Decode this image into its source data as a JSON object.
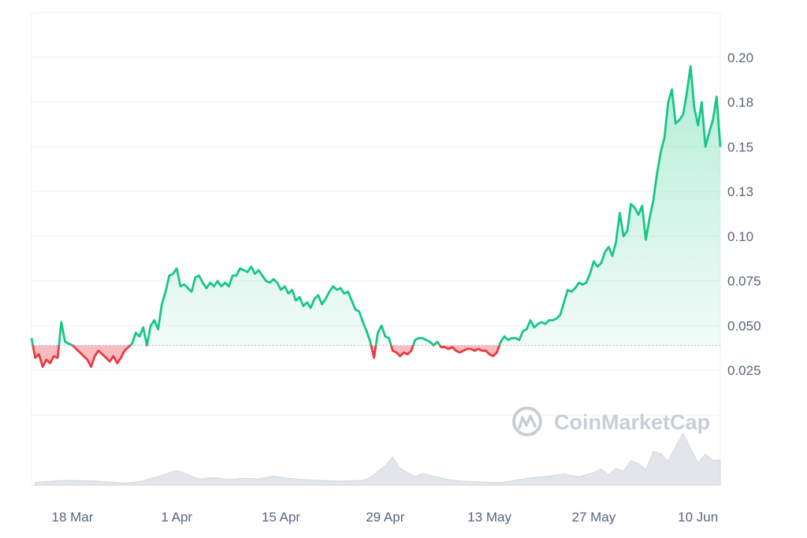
{
  "chart_data": {
    "type": "area",
    "baseline": 0.039,
    "colors": {
      "up": "#16c784",
      "down": "#ea3943",
      "volume": "#e2e6ea",
      "grid": "#eff2f5",
      "text": "#58667e",
      "watermark": "#c9ced6"
    },
    "y_ticks": [
      {
        "value": 0.025,
        "label": "0.025"
      },
      {
        "value": 0.05,
        "label": "0.050"
      },
      {
        "value": 0.075,
        "label": "0.075"
      },
      {
        "value": 0.1,
        "label": "0.10"
      },
      {
        "value": 0.125,
        "label": "0.13"
      },
      {
        "value": 0.15,
        "label": "0.15"
      },
      {
        "value": 0.175,
        "label": "0.18"
      },
      {
        "value": 0.2,
        "label": "0.20"
      }
    ],
    "ylim": [
      0.0,
      0.225
    ],
    "x_ticks": [
      {
        "value": 5,
        "label": "18 Mar"
      },
      {
        "value": 19,
        "label": "1 Apr"
      },
      {
        "value": 33,
        "label": "15 Apr"
      },
      {
        "value": 47,
        "label": "29 Apr"
      },
      {
        "value": 61,
        "label": "13 May"
      },
      {
        "value": 75,
        "label": "27 May"
      },
      {
        "value": 89,
        "label": "10 Jun"
      }
    ],
    "xlim": [
      -0.5,
      92
    ],
    "x_unit": "days from 13 Mar",
    "price_series": {
      "x": [
        -0.5,
        0,
        0.5,
        1,
        1.5,
        2,
        2.5,
        3,
        3.5,
        4,
        4.5,
        5,
        5.5,
        6,
        6.5,
        7,
        7.5,
        8,
        8.5,
        9,
        9.5,
        10,
        10.5,
        11,
        11.5,
        12,
        12.5,
        13,
        13.5,
        14,
        14.5,
        15,
        15.5,
        16,
        16.5,
        17,
        17.5,
        18,
        18.5,
        19,
        19.5,
        20,
        20.5,
        21,
        21.5,
        22,
        22.5,
        23,
        23.5,
        24,
        24.5,
        25,
        25.5,
        26,
        26.5,
        27,
        27.5,
        28,
        28.5,
        29,
        29.5,
        30,
        30.5,
        31,
        31.5,
        32,
        32.5,
        33,
        33.5,
        34,
        34.5,
        35,
        35.5,
        36,
        36.5,
        37,
        37.5,
        38,
        38.5,
        39,
        39.5,
        40,
        40.5,
        41,
        41.5,
        42,
        42.5,
        43,
        43.5,
        44,
        44.5,
        45,
        45.5,
        46,
        46.5,
        47,
        47.5,
        48,
        48.5,
        49,
        49.5,
        50,
        50.5,
        51,
        51.5,
        52,
        52.5,
        53,
        53.5,
        54,
        54.5,
        55,
        55.5,
        56,
        56.5,
        57,
        57.5,
        58,
        58.5,
        59,
        59.5,
        60,
        60.5,
        61,
        61.5,
        62,
        62.5,
        63,
        63.5,
        64,
        64.5,
        65,
        65.5,
        66,
        66.5,
        67,
        67.5,
        68,
        68.5,
        69,
        69.5,
        70,
        70.5,
        71,
        71.5,
        72,
        72.5,
        73,
        73.5,
        74,
        74.5,
        75,
        75.5,
        76,
        76.5,
        77,
        77.5,
        78,
        78.5,
        79,
        79.5,
        80,
        80.5,
        81,
        81.5,
        82,
        82.5,
        83,
        83.5,
        84,
        84.5,
        85,
        85.5,
        86,
        86.5,
        87,
        87.5,
        88,
        88.5,
        89,
        89.5,
        90,
        90.5,
        91,
        91.5,
        92
      ],
      "y": [
        0.043,
        0.032,
        0.034,
        0.027,
        0.031,
        0.029,
        0.033,
        0.032,
        0.052,
        0.041,
        0.04,
        0.039,
        0.037,
        0.035,
        0.033,
        0.031,
        0.027,
        0.033,
        0.036,
        0.034,
        0.032,
        0.03,
        0.033,
        0.029,
        0.032,
        0.036,
        0.038,
        0.04,
        0.046,
        0.044,
        0.049,
        0.039,
        0.05,
        0.053,
        0.048,
        0.062,
        0.069,
        0.078,
        0.079,
        0.082,
        0.072,
        0.073,
        0.071,
        0.069,
        0.077,
        0.078,
        0.074,
        0.071,
        0.074,
        0.072,
        0.075,
        0.072,
        0.074,
        0.072,
        0.078,
        0.078,
        0.082,
        0.081,
        0.08,
        0.083,
        0.079,
        0.081,
        0.078,
        0.075,
        0.074,
        0.076,
        0.074,
        0.07,
        0.072,
        0.068,
        0.07,
        0.064,
        0.066,
        0.061,
        0.063,
        0.06,
        0.065,
        0.067,
        0.062,
        0.065,
        0.069,
        0.072,
        0.07,
        0.071,
        0.068,
        0.069,
        0.064,
        0.059,
        0.058,
        0.052,
        0.047,
        0.041,
        0.032,
        0.046,
        0.05,
        0.044,
        0.043,
        0.036,
        0.035,
        0.033,
        0.035,
        0.034,
        0.036,
        0.042,
        0.043,
        0.043,
        0.042,
        0.041,
        0.039,
        0.041,
        0.038,
        0.038,
        0.037,
        0.038,
        0.036,
        0.035,
        0.036,
        0.037,
        0.037,
        0.036,
        0.037,
        0.036,
        0.036,
        0.034,
        0.033,
        0.035,
        0.041,
        0.044,
        0.042,
        0.043,
        0.043,
        0.042,
        0.047,
        0.048,
        0.053,
        0.049,
        0.051,
        0.052,
        0.051,
        0.053,
        0.053,
        0.054,
        0.056,
        0.063,
        0.07,
        0.069,
        0.071,
        0.074,
        0.073,
        0.074,
        0.079,
        0.086,
        0.083,
        0.085,
        0.091,
        0.094,
        0.089,
        0.097,
        0.113,
        0.1,
        0.103,
        0.118,
        0.116,
        0.112,
        0.117,
        0.098,
        0.11,
        0.12,
        0.135,
        0.147,
        0.155,
        0.175,
        0.182,
        0.163,
        0.165,
        0.168,
        0.18,
        0.195,
        0.172,
        0.162,
        0.175,
        0.15,
        0.158,
        0.165,
        0.178,
        0.15
      ]
    },
    "volume_series": {
      "x": [
        0,
        4,
        8,
        12,
        14,
        17,
        19,
        21,
        22,
        24,
        26,
        28,
        30,
        32,
        34,
        36,
        38,
        40,
        42,
        44,
        45,
        47,
        48,
        49,
        50,
        51,
        52,
        53,
        55,
        57,
        59,
        61,
        63,
        65,
        67,
        69,
        71,
        73,
        75,
        76,
        77,
        78,
        79,
        80,
        81,
        82,
        83,
        84,
        85,
        86,
        87,
        88,
        89,
        90,
        91,
        92
      ],
      "y": [
        0.4,
        0.7,
        0.6,
        0.3,
        0.5,
        1.4,
        2.1,
        1.3,
        0.9,
        1.1,
        0.8,
        1.0,
        0.9,
        1.3,
        1.0,
        0.8,
        0.7,
        0.6,
        0.6,
        0.7,
        1.1,
        2.8,
        4.0,
        2.4,
        1.8,
        1.2,
        1.7,
        1.4,
        0.9,
        0.6,
        0.5,
        0.4,
        0.4,
        0.8,
        1.1,
        1.3,
        1.6,
        1.2,
        1.8,
        2.3,
        1.5,
        2.4,
        2.0,
        3.5,
        3.1,
        2.2,
        4.8,
        4.5,
        3.4,
        5.5,
        7.4,
        5.2,
        3.2,
        4.4,
        3.5,
        3.6
      ]
    },
    "volume_max": 8.5
  },
  "watermark": {
    "text": "CoinMarketCap",
    "icon": "coinmarketcap-logo-icon"
  }
}
